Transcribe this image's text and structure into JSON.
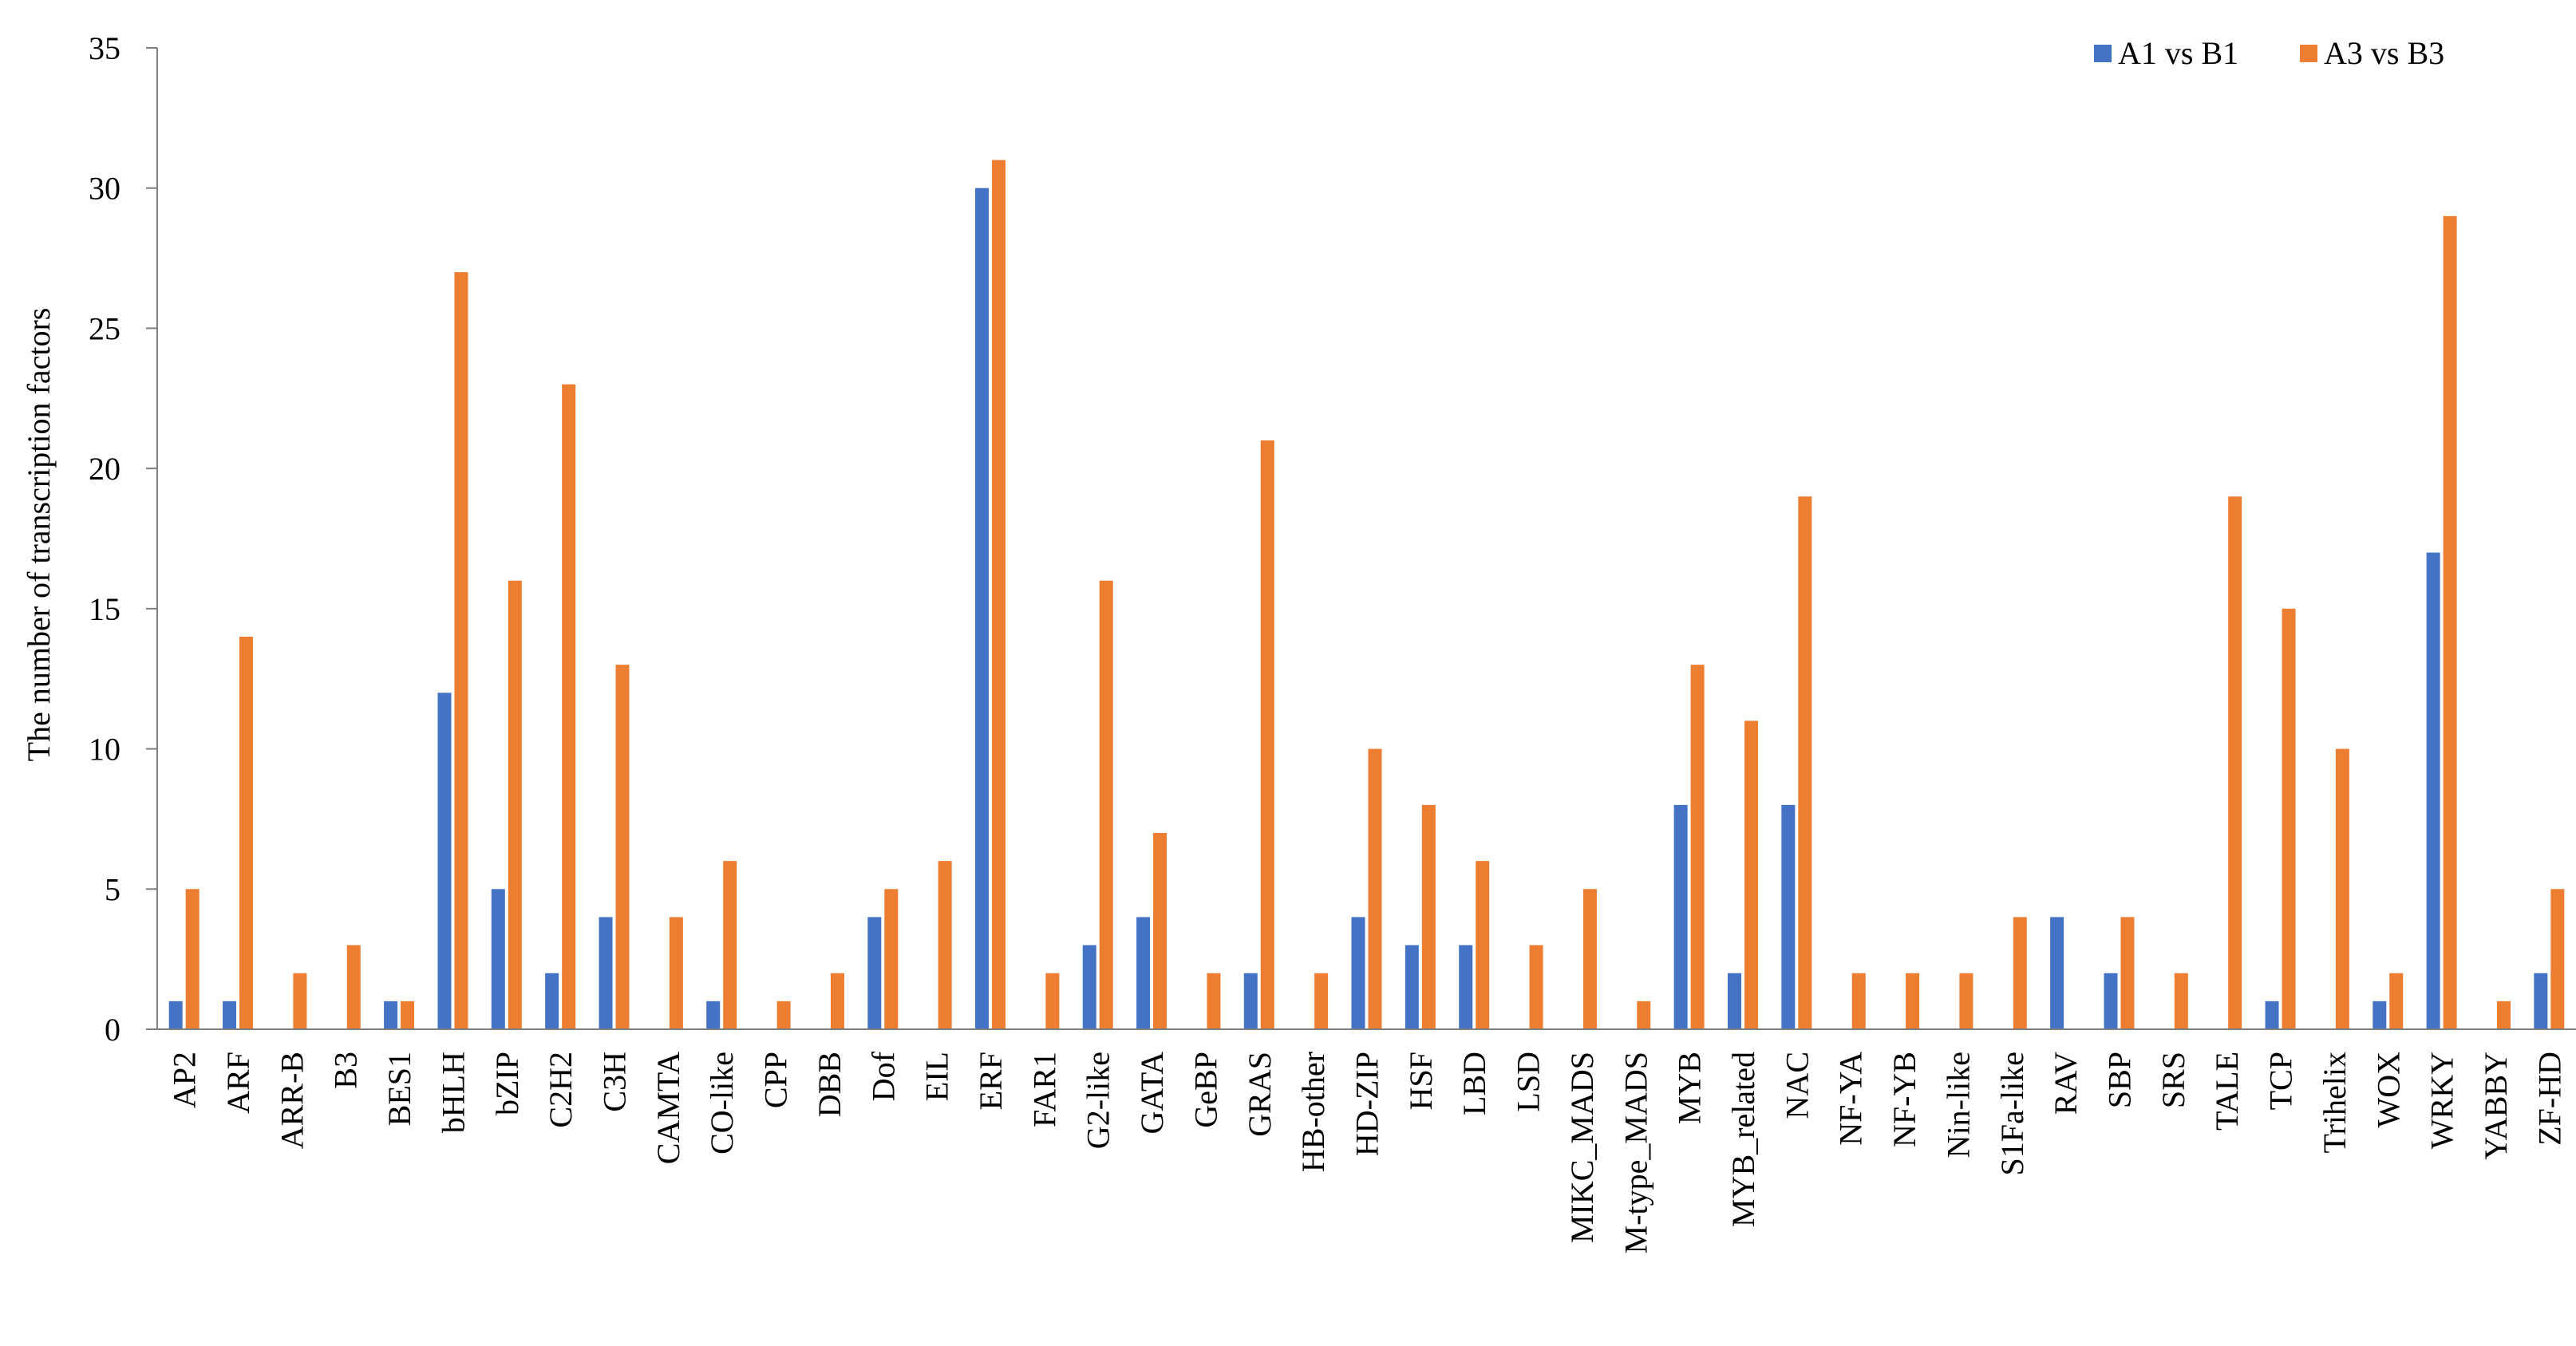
{
  "chart_data": {
    "type": "bar",
    "title": "",
    "xlabel": "",
    "ylabel": "The number of transcription factors",
    "ylim": [
      0,
      35
    ],
    "yticks": [
      0,
      5,
      10,
      15,
      20,
      25,
      30,
      35
    ],
    "grid": false,
    "legend_position": "top-right",
    "categories": [
      "AP2",
      "ARF",
      "ARR-B",
      "B3",
      "BES1",
      "bHLH",
      "bZIP",
      "C2H2",
      "C3H",
      "CAMTA",
      "CO-like",
      "CPP",
      "DBB",
      "Dof",
      "EIL",
      "ERF",
      "FAR1",
      "G2-like",
      "GATA",
      "GeBP",
      "GRAS",
      "HB-other",
      "HD-ZIP",
      "HSF",
      "LBD",
      "LSD",
      "MIKC_MADS",
      "M-type_MADS",
      "MYB",
      "MYB_related",
      "NAC",
      "NF-YA",
      "NF-YB",
      "Nin-like",
      "S1Fa-like",
      "RAV",
      "SBP",
      "SRS",
      "TALE",
      "TCP",
      "Trihelix",
      "WOX",
      "WRKY",
      "YABBY",
      "ZF-HD"
    ],
    "series": [
      {
        "name": "A1 vs B1",
        "color": "#4472C4",
        "values": [
          1,
          1,
          0,
          0,
          1,
          12,
          5,
          2,
          4,
          0,
          1,
          0,
          0,
          4,
          0,
          30,
          0,
          3,
          4,
          0,
          2,
          0,
          4,
          3,
          3,
          0,
          0,
          0,
          8,
          2,
          8,
          0,
          0,
          0,
          0,
          4,
          2,
          0,
          0,
          1,
          0,
          1,
          17,
          0,
          2
        ]
      },
      {
        "name": "A3 vs B3",
        "color": "#ED7D31",
        "values": [
          5,
          14,
          2,
          3,
          1,
          27,
          16,
          23,
          13,
          4,
          6,
          1,
          2,
          5,
          6,
          31,
          2,
          16,
          7,
          2,
          21,
          2,
          10,
          8,
          6,
          3,
          5,
          1,
          13,
          11,
          19,
          2,
          2,
          2,
          4,
          0,
          4,
          2,
          19,
          15,
          10,
          2,
          29,
          1,
          5
        ]
      }
    ]
  }
}
